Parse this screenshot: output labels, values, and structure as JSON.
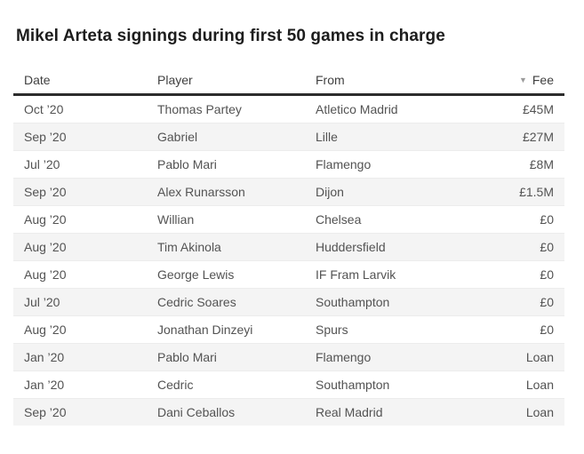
{
  "page": {
    "title": "Mikel Arteta signings during first 50 games in charge"
  },
  "table": {
    "headers": [
      {
        "label": "Date"
      },
      {
        "label": "Player"
      },
      {
        "label": "From"
      },
      {
        "label": "Fee",
        "sorted": "descending"
      }
    ],
    "sort_icon": "▼",
    "row_keys": [
      "date",
      "player",
      "from",
      "fee"
    ],
    "rows": [
      {
        "date": "Oct ’20",
        "player": "Thomas Partey",
        "from": "Atletico Madrid",
        "fee": "£45M"
      },
      {
        "date": "Sep ’20",
        "player": "Gabriel",
        "from": "Lille",
        "fee": "£27M"
      },
      {
        "date": "Jul ’20",
        "player": "Pablo Mari",
        "from": "Flamengo",
        "fee": "£8M"
      },
      {
        "date": "Sep ’20",
        "player": "Alex Runarsson",
        "from": "Dijon",
        "fee": "£1.5M"
      },
      {
        "date": "Aug ’20",
        "player": "Willian",
        "from": "Chelsea",
        "fee": "£0"
      },
      {
        "date": "Aug ’20",
        "player": "Tim Akinola",
        "from": "Huddersfield",
        "fee": "£0"
      },
      {
        "date": "Aug ’20",
        "player": "George Lewis",
        "from": "IF Fram Larvik",
        "fee": "£0"
      },
      {
        "date": "Jul ’20",
        "player": "Cedric Soares",
        "from": "Southampton",
        "fee": "£0"
      },
      {
        "date": "Aug ’20",
        "player": "Jonathan Dinzeyi",
        "from": "Spurs",
        "fee": "£0"
      },
      {
        "date": "Jan ’20",
        "player": "Pablo Mari",
        "from": "Flamengo",
        "fee": "Loan"
      },
      {
        "date": "Jan ’20",
        "player": "Cedric",
        "from": "Southampton",
        "fee": "Loan"
      },
      {
        "date": "Sep ’20",
        "player": "Dani Ceballos",
        "from": "Real Madrid",
        "fee": "Loan"
      }
    ]
  },
  "chart_data": {
    "type": "table",
    "title": "Mikel Arteta signings during first 50 games in charge",
    "columns": [
      "Date",
      "Player",
      "From",
      "Fee"
    ],
    "sorted_by": "Fee (descending)",
    "rows": [
      [
        "Oct ’20",
        "Thomas Partey",
        "Atletico Madrid",
        "£45M"
      ],
      [
        "Sep ’20",
        "Gabriel",
        "Lille",
        "£27M"
      ],
      [
        "Jul ’20",
        "Pablo Mari",
        "Flamengo",
        "£8M"
      ],
      [
        "Sep ’20",
        "Alex Runarsson",
        "Dijon",
        "£1.5M"
      ],
      [
        "Aug ’20",
        "Willian",
        "Chelsea",
        "£0"
      ],
      [
        "Aug ’20",
        "Tim Akinola",
        "Huddersfield",
        "£0"
      ],
      [
        "Aug ’20",
        "George Lewis",
        "IF Fram Larvik",
        "£0"
      ],
      [
        "Jul ’20",
        "Cedric Soares",
        "Southampton",
        "£0"
      ],
      [
        "Aug ’20",
        "Jonathan Dinzeyi",
        "Spurs",
        "£0"
      ],
      [
        "Jan ’20",
        "Pablo Mari",
        "Flamengo",
        "Loan"
      ],
      [
        "Jan ’20",
        "Cedric",
        "Southampton",
        "Loan"
      ],
      [
        "Sep ’20",
        "Dani Ceballos",
        "Real Madrid",
        "Loan"
      ]
    ]
  },
  "colors": {
    "background": "#ffffff",
    "title_text": "#1d1d1d",
    "header_text": "#404040",
    "body_text": "#535353",
    "row_stripe": "#f4f4f4",
    "row_divider": "#ececec",
    "header_rule": "#2d2d2d",
    "sort_icon": "#9b9b9b"
  }
}
